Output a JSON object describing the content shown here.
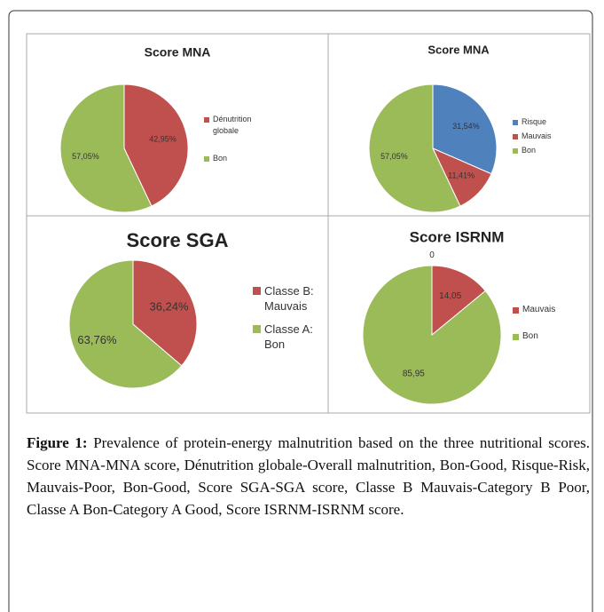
{
  "chart_data": [
    {
      "type": "pie",
      "title": "Score MNA",
      "categories": [
        "Dénutrition globale",
        "Bon"
      ],
      "values": [
        42.95,
        57.05
      ],
      "value_labels": [
        "42,95%",
        "57,05%"
      ],
      "colors": [
        "#c0504d",
        "#9bbb59"
      ]
    },
    {
      "type": "pie",
      "title": "Score MNA",
      "categories": [
        "Risque",
        "Mauvais",
        "Bon"
      ],
      "values": [
        31.54,
        11.41,
        57.05
      ],
      "value_labels": [
        "31,54%",
        "11,41%",
        "57,05%"
      ],
      "colors": [
        "#4f81bd",
        "#c0504d",
        "#9bbb59"
      ]
    },
    {
      "type": "pie",
      "title": "Score SGA",
      "categories": [
        "Classe B: Mauvais",
        "Classe A: Bon"
      ],
      "values": [
        36.24,
        63.76
      ],
      "value_labels": [
        "36,24%",
        "63,76%"
      ],
      "colors": [
        "#c0504d",
        "#9bbb59"
      ]
    },
    {
      "type": "pie",
      "title": "Score ISRNM",
      "categories": [
        null,
        "Mauvais",
        "Bon"
      ],
      "values": [
        0,
        14.05,
        85.95
      ],
      "value_labels": [
        "0",
        "14,05",
        "85,95"
      ],
      "colors": [
        "#4f81bd",
        "#c0504d",
        "#9bbb59"
      ]
    }
  ],
  "caption": {
    "label": "Figure 1:",
    "text": "Prevalence of protein-energy malnutrition based on the three nutritional scores. Score MNA-MNA score, Dénutrition globale-Overall malnutrition, Bon-Good, Risque-Risk, Mauvais-Poor, Bon-Good, Score SGA-SGA score, Classe B Mauvais-Category B Poor, Classe A Bon-Category A Good, Score ISRNM-ISRNM score."
  }
}
